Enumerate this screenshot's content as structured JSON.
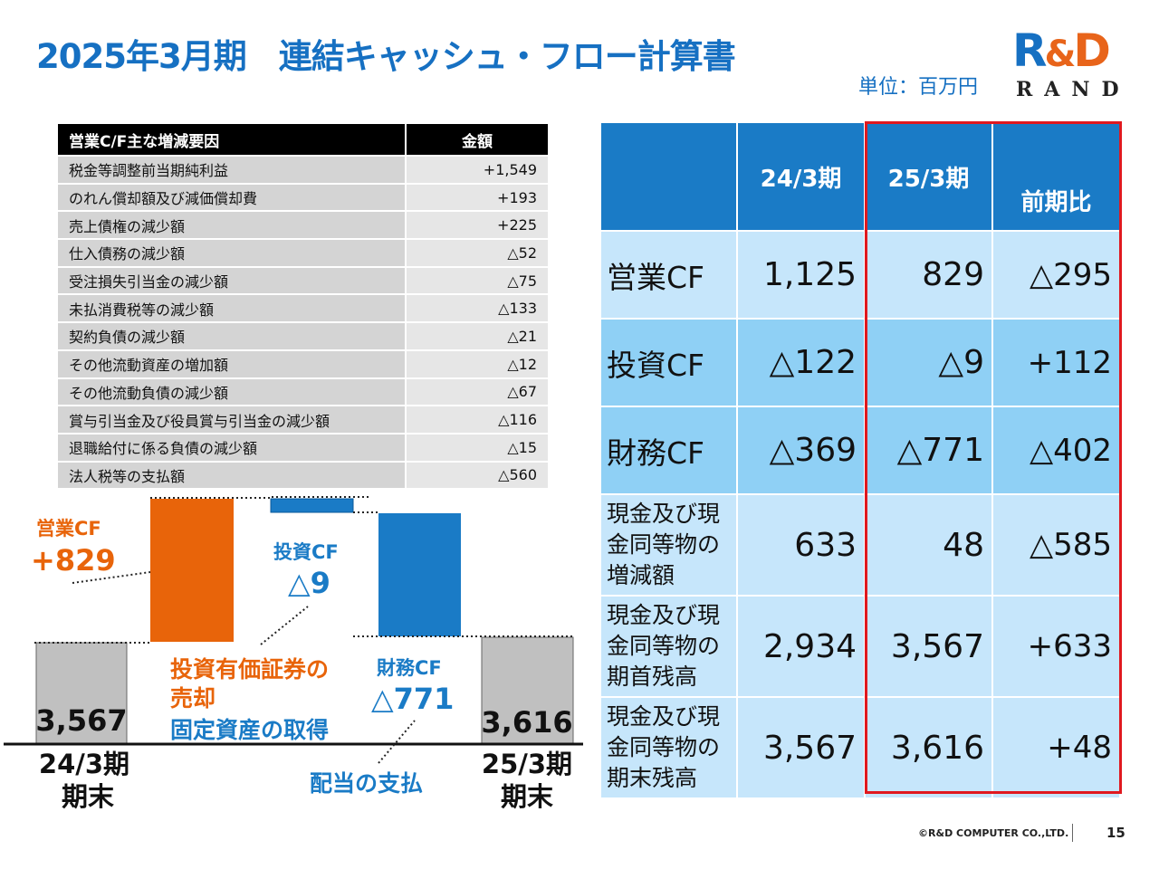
{
  "title": "2025年3月期　連結キャッシュ・フロー計算書",
  "unit": "単位：百万円",
  "logo": {
    "mark_r": "R",
    "mark_amp": "&",
    "mark_d": "D",
    "text": "RAND"
  },
  "factors": {
    "header_label": "営業C/F主な増減要因",
    "header_amount": "金額",
    "rows": [
      {
        "label": "税金等調整前当期純利益",
        "amount": "+1,549"
      },
      {
        "label": "のれん償却額及び減価償却費",
        "amount": "+193"
      },
      {
        "label": "売上債権の減少額",
        "amount": "+225"
      },
      {
        "label": "仕入債務の減少額",
        "amount": "△52"
      },
      {
        "label": "受注損失引当金の減少額",
        "amount": "△75"
      },
      {
        "label": "未払消費税等の減少額",
        "amount": "△133"
      },
      {
        "label": "契約負債の減少額",
        "amount": "△21"
      },
      {
        "label": "その他流動資産の増加額",
        "amount": "△12"
      },
      {
        "label": "その他流動負債の減少額",
        "amount": "△67"
      },
      {
        "label": "賞与引当金及び役員賞与引当金の減少額",
        "amount": "△116"
      },
      {
        "label": "退職給付に係る負債の減少額",
        "amount": "△15"
      },
      {
        "label": "法人税等の支払額",
        "amount": "△560"
      }
    ]
  },
  "cf_table": {
    "headers": [
      "",
      "24/3期",
      "25/3期",
      "前期比"
    ],
    "rows": [
      {
        "label": "営業CF",
        "prev": "1,125",
        "curr": "829",
        "diff": "△295"
      },
      {
        "label": "投資CF",
        "prev": "△122",
        "curr": "△9",
        "diff": "+112"
      },
      {
        "label": "財務CF",
        "prev": "△369",
        "curr": "△771",
        "diff": "△402"
      },
      {
        "label": "現金及び現金同等物の増減額",
        "prev": "633",
        "curr": "48",
        "diff": "△585"
      },
      {
        "label": "現金及び現金同等物の期首残高",
        "prev": "2,934",
        "curr": "3,567",
        "diff": "+633"
      },
      {
        "label": "現金及び現金同等物の期末残高",
        "prev": "3,567",
        "curr": "3,616",
        "diff": "+48"
      }
    ]
  },
  "chart_data": {
    "type": "bar",
    "subtype": "waterfall",
    "title": "",
    "categories": [
      "24/3期 期末",
      "営業CF",
      "投資CF",
      "財務CF",
      "25/3期 期末"
    ],
    "values": [
      3567,
      829,
      -9,
      -771,
      3616
    ],
    "value_labels": [
      "3,567",
      "+829",
      "△9",
      "△771",
      "3,616"
    ],
    "series_labels": {
      "operating": "営業CF",
      "investing": "投資CF",
      "financing": "財務CF"
    },
    "x_labels": {
      "start_line1": "24/3期",
      "start_line2": "期末",
      "end_line1": "25/3期",
      "end_line2": "期末"
    },
    "annotations": {
      "investing_note_1": "投資有価証券の",
      "investing_note_2": "売却",
      "investing_note_3": "固定資産の取得",
      "financing_note": "配当の支払"
    },
    "colors": {
      "total": "#c0c0c0",
      "operating": "#e8640a",
      "investing": "#1a7bc6",
      "financing": "#1a7bc6",
      "label_orange": "#e8640a",
      "label_blue": "#1a7bc6"
    }
  },
  "footer": {
    "copyright": "©R&D COMPUTER CO.,LTD.",
    "page": "15"
  }
}
